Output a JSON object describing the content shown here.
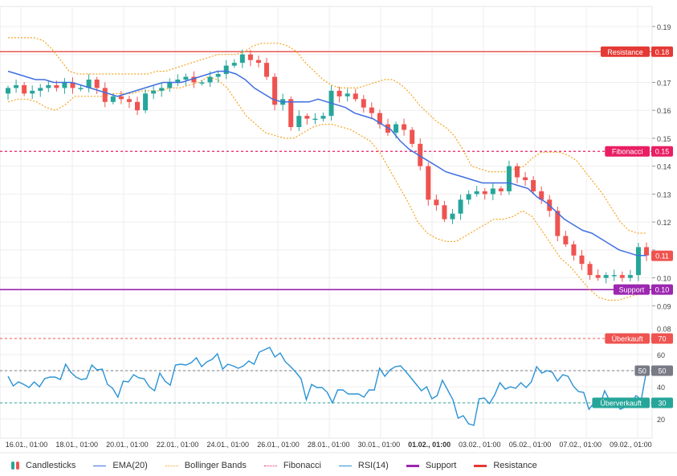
{
  "chart_data": {
    "type": "candlestick",
    "price_axis": {
      "ticks": [
        "0.19",
        "0.18",
        "0.17",
        "0.16",
        "0.15",
        "0.14",
        "0.13",
        "0.12",
        "0.11",
        "0.10",
        "0.09",
        "0.08"
      ],
      "range": [
        0.08,
        0.19
      ]
    },
    "rsi_axis": {
      "ticks": [
        "60",
        "50",
        "40",
        "30",
        "20"
      ],
      "range": [
        10,
        75
      ]
    },
    "x_tick_labels": [
      "16.01., 01:00",
      "18.01., 01:00",
      "20.01., 01:00",
      "22.01., 01:00",
      "24.01., 01:00",
      "26.01., 01:00",
      "28.01., 01:00",
      "30.01., 01:00",
      "01.02., 01:00",
      "03.02., 01:00",
      "05.02., 01:00",
      "07.02., 01:00",
      "09.02., 01:00"
    ],
    "closes": [
      0.168,
      0.169,
      0.166,
      0.167,
      0.168,
      0.169,
      0.168,
      0.17,
      0.168,
      0.168,
      0.171,
      0.168,
      0.163,
      0.165,
      0.164,
      0.163,
      0.16,
      0.166,
      0.167,
      0.168,
      0.17,
      0.171,
      0.172,
      0.17,
      0.17,
      0.172,
      0.173,
      0.176,
      0.177,
      0.18,
      0.178,
      0.177,
      0.172,
      0.162,
      0.164,
      0.154,
      0.158,
      0.157,
      0.157,
      0.158,
      0.167,
      0.165,
      0.166,
      0.164,
      0.161,
      0.159,
      0.155,
      0.152,
      0.155,
      0.153,
      0.148,
      0.14,
      0.128,
      0.126,
      0.121,
      0.123,
      0.128,
      0.13,
      0.131,
      0.13,
      0.132,
      0.131,
      0.14,
      0.136,
      0.135,
      0.131,
      0.128,
      0.124,
      0.115,
      0.112,
      0.108,
      0.105,
      0.101,
      0.1,
      0.101,
      0.101,
      0.1,
      0.101,
      0.111,
      0.108
    ],
    "first_open": 0.166,
    "ema20": [
      0.174,
      0.173,
      0.172,
      0.171,
      0.171,
      0.17,
      0.17,
      0.17,
      0.169,
      0.168,
      0.167,
      0.166,
      0.165,
      0.166,
      0.167,
      0.168,
      0.169,
      0.17,
      0.17,
      0.17,
      0.171,
      0.172,
      0.173,
      0.174,
      0.174,
      0.173,
      0.171,
      0.168,
      0.166,
      0.164,
      0.163,
      0.163,
      0.163,
      0.163,
      0.164,
      0.163,
      0.162,
      0.161,
      0.159,
      0.158,
      0.157,
      0.155,
      0.153,
      0.149,
      0.146,
      0.144,
      0.142,
      0.14,
      0.138,
      0.137,
      0.136,
      0.135,
      0.134,
      0.134,
      0.134,
      0.134,
      0.133,
      0.132,
      0.129,
      0.127,
      0.124,
      0.121,
      0.119,
      0.117,
      0.116,
      0.114,
      0.112,
      0.11,
      0.109,
      0.108,
      0.108
    ],
    "bb_upper": [
      0.186,
      0.186,
      0.186,
      0.186,
      0.185,
      0.182,
      0.178,
      0.174,
      0.173,
      0.173,
      0.173,
      0.173,
      0.173,
      0.173,
      0.173,
      0.173,
      0.173,
      0.174,
      0.174,
      0.175,
      0.176,
      0.177,
      0.178,
      0.179,
      0.18,
      0.18,
      0.18,
      0.181,
      0.183,
      0.184,
      0.184,
      0.184,
      0.183,
      0.181,
      0.177,
      0.174,
      0.171,
      0.169,
      0.168,
      0.168,
      0.168,
      0.169,
      0.17,
      0.171,
      0.171,
      0.169,
      0.166,
      0.162,
      0.159,
      0.156,
      0.154,
      0.151,
      0.146,
      0.14,
      0.139,
      0.138,
      0.138,
      0.138,
      0.139,
      0.14,
      0.143,
      0.145,
      0.145,
      0.145,
      0.144,
      0.142,
      0.138,
      0.134,
      0.13,
      0.125,
      0.12,
      0.117,
      0.116,
      0.116
    ],
    "bb_lower": [
      0.163,
      0.164,
      0.164,
      0.163,
      0.161,
      0.16,
      0.162,
      0.165,
      0.165,
      0.165,
      0.165,
      0.166,
      0.166,
      0.166,
      0.167,
      0.167,
      0.167,
      0.168,
      0.168,
      0.169,
      0.17,
      0.172,
      0.171,
      0.168,
      0.163,
      0.158,
      0.155,
      0.152,
      0.151,
      0.15,
      0.15,
      0.152,
      0.154,
      0.155,
      0.155,
      0.154,
      0.153,
      0.151,
      0.149,
      0.145,
      0.139,
      0.133,
      0.127,
      0.12,
      0.116,
      0.114,
      0.113,
      0.113,
      0.115,
      0.117,
      0.119,
      0.121,
      0.121,
      0.122,
      0.124,
      0.122,
      0.117,
      0.112,
      0.107,
      0.104,
      0.1,
      0.096,
      0.093,
      0.092,
      0.092,
      0.093,
      0.094,
      0.097
    ],
    "rsi14": [
      46.5,
      40.5,
      43,
      41.5,
      39.5,
      43,
      40,
      45,
      46,
      46,
      44.5,
      54,
      49,
      46,
      44.5,
      45,
      53.5,
      50.5,
      51,
      41.5,
      39,
      33.5,
      43.5,
      43,
      47.5,
      45.5,
      45,
      40,
      37.5,
      48.5,
      43.5,
      41,
      53.5,
      54,
      53.5,
      55,
      58,
      52.5,
      55.5,
      57,
      60.5,
      51,
      54,
      53,
      51.5,
      53,
      56,
      54,
      61.5,
      63,
      64.5,
      58.5,
      61,
      55.5,
      52.5,
      49,
      45,
      32,
      41.5,
      39.5,
      39.5,
      36.5,
      30,
      38,
      38,
      35.5,
      35.5,
      35.5,
      33.5,
      38,
      38,
      51.5,
      46.5,
      50.5,
      52.5,
      53,
      49.5,
      45.5,
      41.5,
      37.5,
      40,
      32.5,
      34.5,
      44,
      38,
      32,
      20.5,
      22,
      17,
      16,
      32.5,
      33,
      29.5,
      35,
      42.5,
      38.5,
      40,
      39,
      42.5,
      39.5,
      43,
      52.5,
      48.5,
      50,
      49,
      43.5,
      47.5,
      46.5,
      40.5,
      37,
      36.5,
      26,
      30,
      27.5,
      37.5,
      31,
      30,
      26,
      27.5,
      29.5,
      34.5,
      32,
      50
    ],
    "levels": {
      "resistance": {
        "label": "Resistance",
        "value": 0.181,
        "value_label": "0.18",
        "color": "#e53935"
      },
      "fibonacci": {
        "label": "Fibonacci",
        "value": 0.1453,
        "value_label": "0.15",
        "color": "#e91e63"
      },
      "support": {
        "label": "Support",
        "value": 0.0958,
        "value_label": "0.10",
        "color": "#9c27b0"
      },
      "last_price": {
        "value": 0.1079,
        "value_label": "0.11",
        "color": "#ef5350"
      }
    },
    "rsi_levels": {
      "overbought": {
        "label": "Überkauft",
        "value": 70,
        "value_label": "70",
        "color": "#ef5350"
      },
      "mid": {
        "label": "50",
        "value": 50,
        "value_label": "50",
        "color": "#787b86"
      },
      "oversold": {
        "label": "Überverkauft",
        "value": 30,
        "value_label": "30",
        "color": "#26a69a"
      }
    },
    "grid": true,
    "legend_position": "bottom"
  },
  "colors": {
    "up": "#26a69a",
    "down": "#ef5350",
    "ema": "#3f6fe0",
    "bollinger": "#f5a623",
    "rsi": "#2a93d5"
  },
  "legend": [
    {
      "label": "Candlesticks",
      "kind": "candles"
    },
    {
      "label": "EMA(20)",
      "kind": "line",
      "color": "#3f6fe0"
    },
    {
      "label": "Bollinger Bands",
      "kind": "dotted",
      "color": "#f5a623"
    },
    {
      "label": "Fibonacci",
      "kind": "dotted",
      "color": "#e91e63"
    },
    {
      "label": "RSI(14)",
      "kind": "line",
      "color": "#2a93d5"
    },
    {
      "label": "Support",
      "kind": "thick",
      "color": "#9c27b0"
    },
    {
      "label": "Resistance",
      "kind": "thick",
      "color": "#e53935"
    }
  ]
}
